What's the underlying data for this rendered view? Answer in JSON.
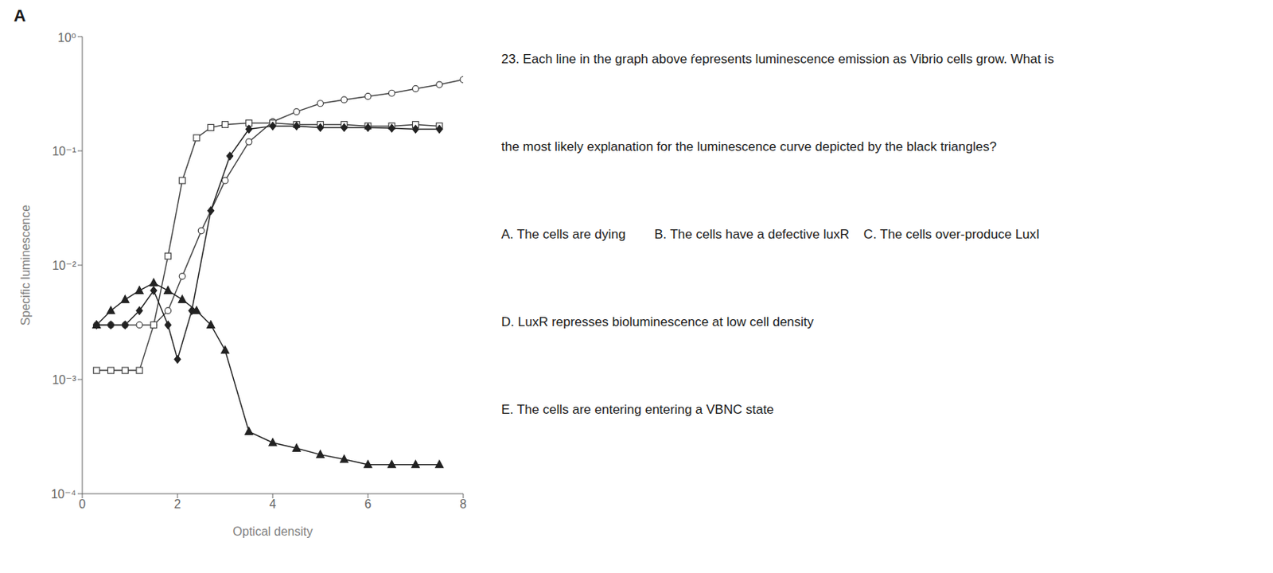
{
  "chart_data": {
    "type": "line",
    "title": "A",
    "xlabel": "Optical density",
    "ylabel": "Specific luminescence",
    "xlim": [
      0,
      8
    ],
    "xticks": [
      0,
      2,
      4,
      6,
      8
    ],
    "ylim": [
      0.0001,
      1
    ],
    "yticks": [
      {
        "value": 0.0001,
        "label": "10⁻⁴"
      },
      {
        "value": 0.001,
        "label": "10⁻³"
      },
      {
        "value": 0.01,
        "label": "10⁻²"
      },
      {
        "value": 0.1,
        "label": "10⁻¹"
      },
      {
        "value": 1,
        "label": "10⁰"
      }
    ],
    "log": "y",
    "grid": false,
    "series": [
      {
        "color": "#444444",
        "marker": "circle_open",
        "x": [
          0.3,
          0.6,
          0.9,
          1.2,
          1.5,
          1.8,
          2.1,
          2.5,
          3.0,
          3.5,
          4.0,
          4.5,
          5.0,
          5.5,
          6.0,
          6.5,
          7.0,
          7.5,
          8.0
        ],
        "values": [
          0.003,
          0.003,
          0.003,
          0.003,
          0.003,
          0.004,
          0.008,
          0.02,
          0.055,
          0.12,
          0.18,
          0.22,
          0.26,
          0.28,
          0.3,
          0.32,
          0.35,
          0.38,
          0.42
        ]
      },
      {
        "color": "#444444",
        "marker": "square_open",
        "x": [
          0.3,
          0.6,
          0.9,
          1.2,
          1.5,
          1.8,
          2.1,
          2.4,
          2.7,
          3.0,
          3.5,
          4.0,
          4.5,
          5.0,
          5.5,
          6.0,
          6.5,
          7.0,
          7.5
        ],
        "values": [
          0.0012,
          0.0012,
          0.0012,
          0.0012,
          0.003,
          0.012,
          0.055,
          0.13,
          0.16,
          0.17,
          0.175,
          0.175,
          0.17,
          0.17,
          0.17,
          0.165,
          0.165,
          0.17,
          0.165
        ]
      },
      {
        "color": "#222222",
        "marker": "diamond",
        "x": [
          0.3,
          0.6,
          0.9,
          1.2,
          1.5,
          1.8,
          2.0,
          2.3,
          2.7,
          3.1,
          3.5,
          4.0,
          4.5,
          5.0,
          5.5,
          6.0,
          6.5,
          7.0,
          7.5
        ],
        "values": [
          0.003,
          0.003,
          0.003,
          0.004,
          0.006,
          0.003,
          0.0015,
          0.004,
          0.03,
          0.09,
          0.155,
          0.165,
          0.165,
          0.16,
          0.16,
          0.16,
          0.158,
          0.155,
          0.155
        ]
      },
      {
        "color": "#222222",
        "marker": "triangle",
        "x": [
          0.3,
          0.6,
          0.9,
          1.2,
          1.5,
          1.8,
          2.1,
          2.4,
          2.7,
          3.0,
          3.5,
          4.0,
          4.5,
          5.0,
          5.5,
          6.0,
          6.5,
          7.0,
          7.5
        ],
        "values": [
          0.003,
          0.004,
          0.005,
          0.006,
          0.007,
          0.006,
          0.005,
          0.004,
          0.003,
          0.0018,
          0.00035,
          0.00028,
          0.00025,
          0.00022,
          0.0002,
          0.00018,
          0.00018,
          0.00018,
          0.00018
        ]
      }
    ],
    "annotations": [
      "23. Each line in the graph above ŕepresents luminescence emission as Vibrio cells grow. What is",
      "the most likely explanation for the luminescence curve depicted by the black triangles?",
      "A. The cells are dying        B. The cells have a defective luxR    C. The cells over-produce LuxI",
      "D. LuxR represses bioluminescence at low cell density",
      "E. The cells are entering entering a VBNC state"
    ]
  }
}
